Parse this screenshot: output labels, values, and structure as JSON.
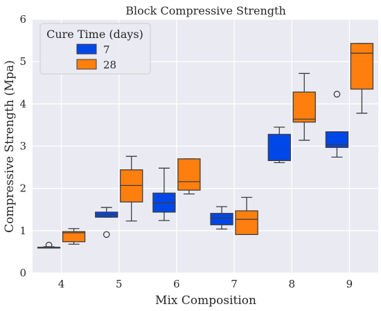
{
  "chart_data": {
    "type": "box",
    "title": "Block Compressive Strength",
    "xlabel": "Mix Composition",
    "ylabel": "Compressive Strength (Mpa)",
    "categories": [
      "4",
      "5",
      "6",
      "7",
      "8",
      "9"
    ],
    "ylim": [
      0,
      6
    ],
    "yticks": [
      "0",
      "1",
      "2",
      "3",
      "4",
      "5",
      "6"
    ],
    "grid": true,
    "legend": {
      "title": "Cure Time (days)",
      "placement": "top-left"
    },
    "series": [
      {
        "name": "7",
        "color": "#0047e8",
        "boxes": [
          {
            "category": "4",
            "whislo": 0.59,
            "q1": 0.59,
            "med": 0.6,
            "q3": 0.61,
            "whishi": 0.62,
            "fliers": [
              0.66
            ]
          },
          {
            "category": "5",
            "whislo": 1.32,
            "q1": 1.32,
            "med": 1.38,
            "q3": 1.44,
            "whishi": 1.55,
            "fliers": [
              0.91
            ]
          },
          {
            "category": "6",
            "whislo": 1.24,
            "q1": 1.44,
            "med": 1.65,
            "q3": 1.89,
            "whishi": 2.48,
            "fliers": []
          },
          {
            "category": "7",
            "whislo": 1.04,
            "q1": 1.14,
            "med": 1.3,
            "q3": 1.41,
            "whishi": 1.57,
            "fliers": []
          },
          {
            "category": "8",
            "whislo": 2.61,
            "q1": 2.66,
            "med": 2.66,
            "q3": 3.28,
            "whishi": 3.45,
            "fliers": []
          },
          {
            "category": "9",
            "whislo": 2.74,
            "q1": 2.97,
            "med": 3.04,
            "q3": 3.34,
            "whishi": 3.34,
            "fliers": [
              4.23
            ]
          }
        ]
      },
      {
        "name": "28",
        "color": "#ff7f0e",
        "boxes": [
          {
            "category": "4",
            "whislo": 0.68,
            "q1": 0.74,
            "med": 0.95,
            "q3": 0.98,
            "whishi": 1.05,
            "fliers": []
          },
          {
            "category": "5",
            "whislo": 1.23,
            "q1": 1.68,
            "med": 2.07,
            "q3": 2.44,
            "whishi": 2.76,
            "fliers": []
          },
          {
            "category": "6",
            "whislo": 1.87,
            "q1": 1.96,
            "med": 2.16,
            "q3": 2.7,
            "whishi": 2.7,
            "fliers": []
          },
          {
            "category": "7",
            "whislo": 0.91,
            "q1": 0.91,
            "med": 1.27,
            "q3": 1.47,
            "whishi": 1.79,
            "fliers": []
          },
          {
            "category": "8",
            "whislo": 3.14,
            "q1": 3.57,
            "med": 3.64,
            "q3": 4.28,
            "whishi": 4.72,
            "fliers": []
          },
          {
            "category": "9",
            "whislo": 3.78,
            "q1": 4.35,
            "med": 5.2,
            "q3": 5.43,
            "whishi": 5.43,
            "fliers": []
          }
        ]
      }
    ]
  }
}
